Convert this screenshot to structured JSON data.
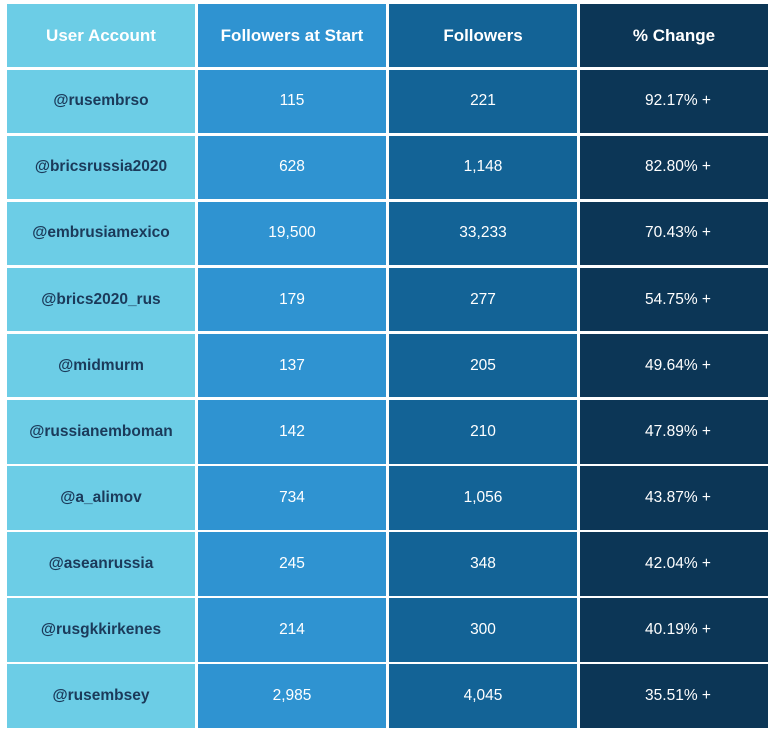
{
  "columns": [
    {
      "label": "User Account",
      "color": "#6ccde6"
    },
    {
      "label": "Followers at Start",
      "color": "#2f93d1"
    },
    {
      "label": "Followers",
      "color": "#136396"
    },
    {
      "label": "% Change",
      "color": "#0c3656"
    }
  ],
  "rows": [
    {
      "account": "@rusembrso",
      "start": "115",
      "followers": "221",
      "change": "92.17% +"
    },
    {
      "account": "@bricsrussia2020",
      "start": "628",
      "followers": "1,148",
      "change": "82.80% +"
    },
    {
      "account": "@embrusiamexico",
      "start": "19,500",
      "followers": "33,233",
      "change": "70.43% +"
    },
    {
      "account": "@brics2020_rus",
      "start": "179",
      "followers": "277",
      "change": "54.75% +"
    },
    {
      "account": "@midmurm",
      "start": "137",
      "followers": "205",
      "change": "49.64% +"
    },
    {
      "account": "@russianemboman",
      "start": "142",
      "followers": "210",
      "change": "47.89% +"
    },
    {
      "account": "@a_alimov",
      "start": "734",
      "followers": "1,056",
      "change": "43.87% +"
    },
    {
      "account": "@aseanrussia",
      "start": "245",
      "followers": "348",
      "change": "42.04% +"
    },
    {
      "account": "@rusgkkirkenes",
      "start": "214",
      "followers": "300",
      "change": "40.19% +"
    },
    {
      "account": "@rusembsey",
      "start": "2,985",
      "followers": "4,045",
      "change": "35.51% +"
    }
  ],
  "chart_data": {
    "type": "table",
    "columns": [
      "User Account",
      "Followers at Start",
      "Followers",
      "% Change"
    ],
    "rows": [
      [
        "@rusembrso",
        115,
        221,
        92.17
      ],
      [
        "@bricsrussia2020",
        628,
        1148,
        82.8
      ],
      [
        "@embrusiamexico",
        19500,
        33233,
        70.43
      ],
      [
        "@brics2020_rus",
        179,
        277,
        54.75
      ],
      [
        "@midmurm",
        137,
        205,
        49.64
      ],
      [
        "@russianemboman",
        142,
        210,
        47.89
      ],
      [
        "@a_alimov",
        734,
        1056,
        43.87
      ],
      [
        "@aseanrussia",
        245,
        348,
        42.04
      ],
      [
        "@rusgkkirkenes",
        214,
        300,
        40.19
      ],
      [
        "@rusembsey",
        2985,
        4045,
        35.51
      ]
    ]
  }
}
